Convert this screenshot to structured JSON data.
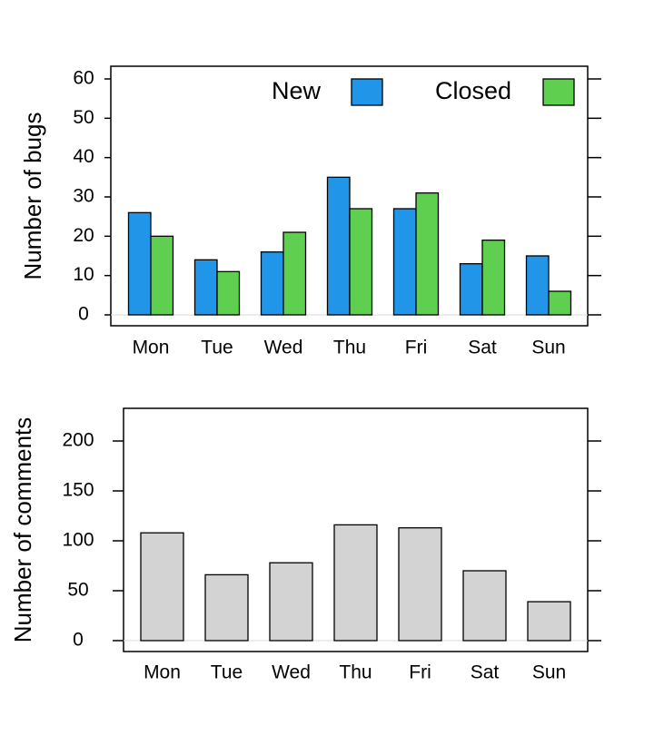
{
  "chart_data": [
    {
      "type": "bar",
      "categories": [
        "Mon",
        "Tue",
        "Wed",
        "Thu",
        "Fri",
        "Sat",
        "Sun"
      ],
      "series": [
        {
          "name": "New",
          "color": "#2196e8",
          "values": [
            26,
            14,
            16,
            35,
            27,
            13,
            15
          ]
        },
        {
          "name": "Closed",
          "color": "#5ecf4e",
          "values": [
            20,
            11,
            21,
            27,
            31,
            19,
            6
          ]
        }
      ],
      "title": "",
      "xlabel": "",
      "ylabel": "Number of bugs",
      "ylim": [
        0,
        60
      ],
      "yticks": [
        0,
        10,
        20,
        30,
        40,
        50,
        60
      ],
      "legend": "top-right",
      "grid": false
    },
    {
      "type": "bar",
      "categories": [
        "Mon",
        "Tue",
        "Wed",
        "Thu",
        "Fri",
        "Sat",
        "Sun"
      ],
      "series": [
        {
          "color": "#d3d3d3",
          "values": [
            108,
            66,
            78,
            116,
            113,
            70,
            39
          ]
        }
      ],
      "title": "",
      "xlabel": "",
      "ylabel": "Number of comments",
      "ylim": [
        0,
        200
      ],
      "yticks": [
        0,
        50,
        100,
        150,
        200
      ],
      "grid": false
    }
  ]
}
